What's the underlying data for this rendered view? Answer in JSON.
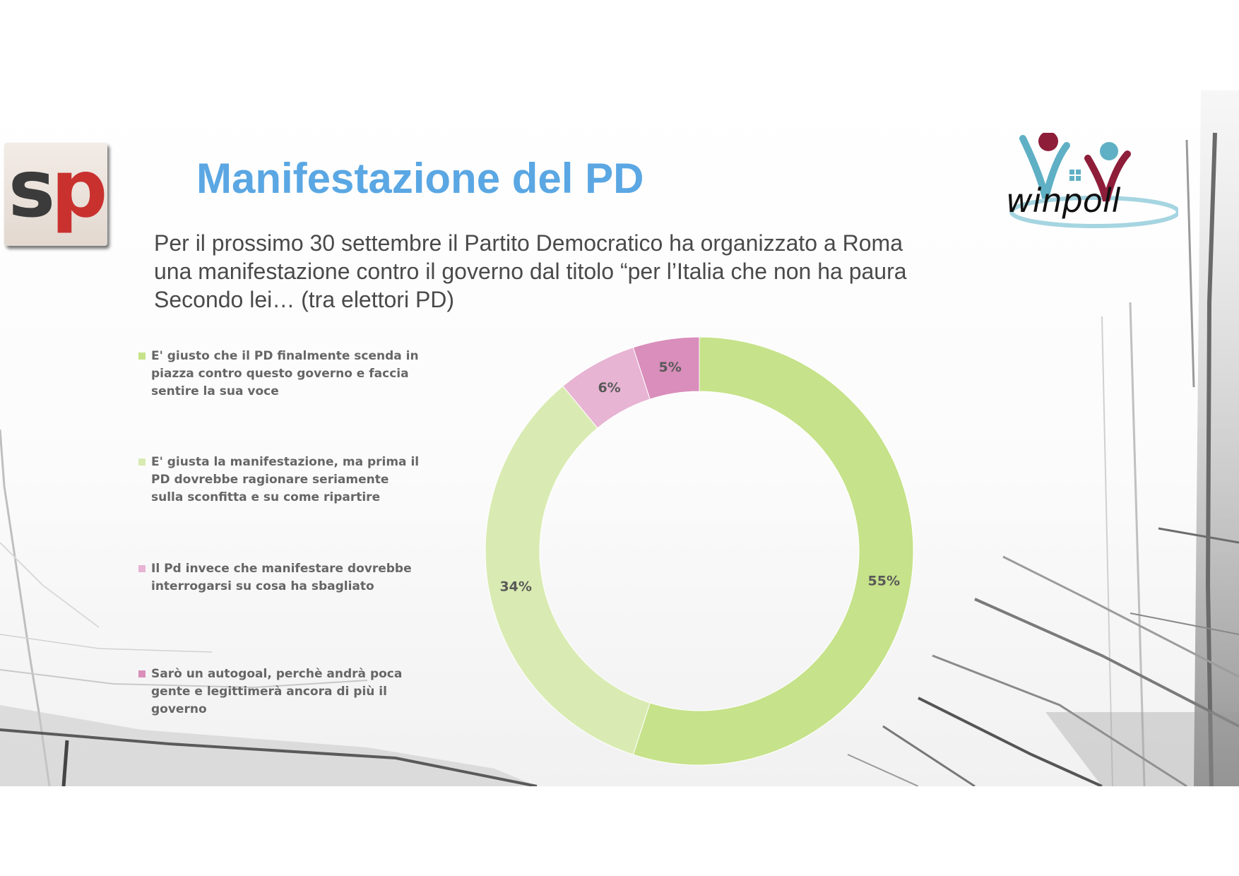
{
  "header": {
    "title": "Manifestazione del PD",
    "question_lines": [
      "Per il prossimo 30 settembre il Partito Democratico ha organizzato a Roma",
      "una manifestazione contro il governo dal titolo “per l’Italia che non ha paura",
      "Secondo lei… (tra elettori PD)"
    ]
  },
  "logos": {
    "left": {
      "icon": "sp-logo",
      "text_s": "s",
      "text_p": "p",
      "colors": [
        "#3b3b3b",
        "#c9312f"
      ]
    },
    "right": {
      "icon": "winpoll-logo",
      "text": "winpoll",
      "colors": [
        "#8e1d3a",
        "#5fb0c4"
      ]
    }
  },
  "chart_data": {
    "type": "pie",
    "donut": true,
    "title": "",
    "legend_position": "left",
    "labels_position": "on-slices",
    "categories": [
      "E' giusto che il PD finalmente scenda in piazza contro questo governo e faccia sentire la sua voce",
      "E' giusta la manifestazione, ma prima il PD dovrebbe ragionare seriamente sulla sconfitta e su come ripartire",
      "Il Pd invece che manifestare dovrebbe interrogarsi su cosa ha sbagliato",
      "Sarò un autogoal, perchè andrà poca gente e legittimerà ancora di più il governo"
    ],
    "legend_lines": [
      [
        "E' giusto che il PD finalmente scenda in",
        "piazza contro questo governo e faccia",
        "sentire la sua voce"
      ],
      [
        "E' giusta la manifestazione, ma prima il",
        "PD dovrebbe ragionare seriamente",
        "sulla sconfitta e su come ripartire"
      ],
      [
        "Il Pd invece che manifestare dovrebbe",
        "interrogarsi su cosa ha sbagliato"
      ],
      [
        "Sarò un autogoal, perchè andrà poca",
        "gente e legittimerà ancora di più il",
        "governo"
      ]
    ],
    "values": [
      55,
      34,
      6,
      5
    ],
    "value_labels": [
      "55%",
      "34%",
      "6%",
      "5%"
    ],
    "colors": [
      "#c6e28a",
      "#d9ebb2",
      "#e7b4d3",
      "#d98ebb"
    ]
  }
}
